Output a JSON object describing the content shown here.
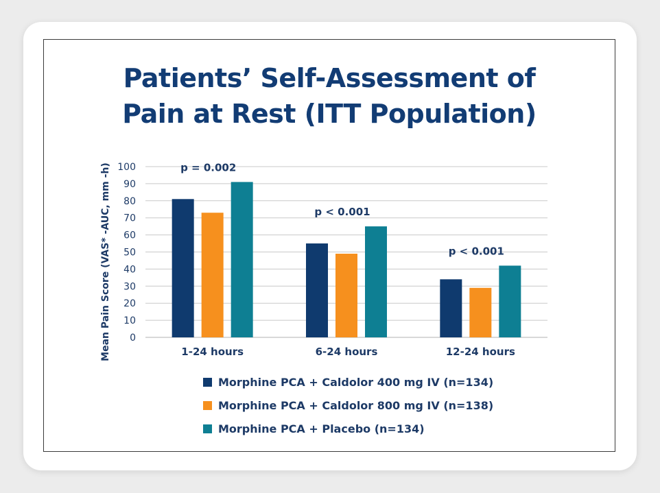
{
  "title_line1": "Patients’ Self-Assessment of",
  "title_line2": "Pain at Rest (ITT Population)",
  "colors": {
    "navy": "#0f3a6e",
    "orange": "#f6901e",
    "teal": "#0e7f93",
    "text": "#1d3a66",
    "grid": "#c8c8c8"
  },
  "chart_data": {
    "type": "bar",
    "title": "Patients’ Self-Assessment of Pain at Rest (ITT Population)",
    "xlabel": "",
    "ylabel": "Mean Pain Score (VAS* -AUC, mm -h)",
    "ylim": [
      0,
      100
    ],
    "yticks": [
      "0",
      "10",
      "20",
      "30",
      "40",
      "50",
      "60",
      "70",
      "80",
      "90",
      "100"
    ],
    "categories": [
      "1-24 hours",
      "6-24 hours",
      "12-24 hours"
    ],
    "series": [
      {
        "name": "Morphine PCA + Caldolor 400 mg IV (n=134)",
        "values": [
          81,
          55,
          34
        ],
        "color": "#0f3a6e"
      },
      {
        "name": "Morphine PCA + Caldolor 800 mg IV (n=138)",
        "values": [
          73,
          49,
          29
        ],
        "color": "#f6901e"
      },
      {
        "name": "Morphine PCA + Placebo (n=134)",
        "values": [
          91,
          65,
          42
        ],
        "color": "#0e7f93"
      }
    ],
    "annotations": [
      "p = 0.002",
      "p < 0.001",
      "p < 0.001"
    ],
    "grid": true,
    "legend_position": "bottom"
  }
}
